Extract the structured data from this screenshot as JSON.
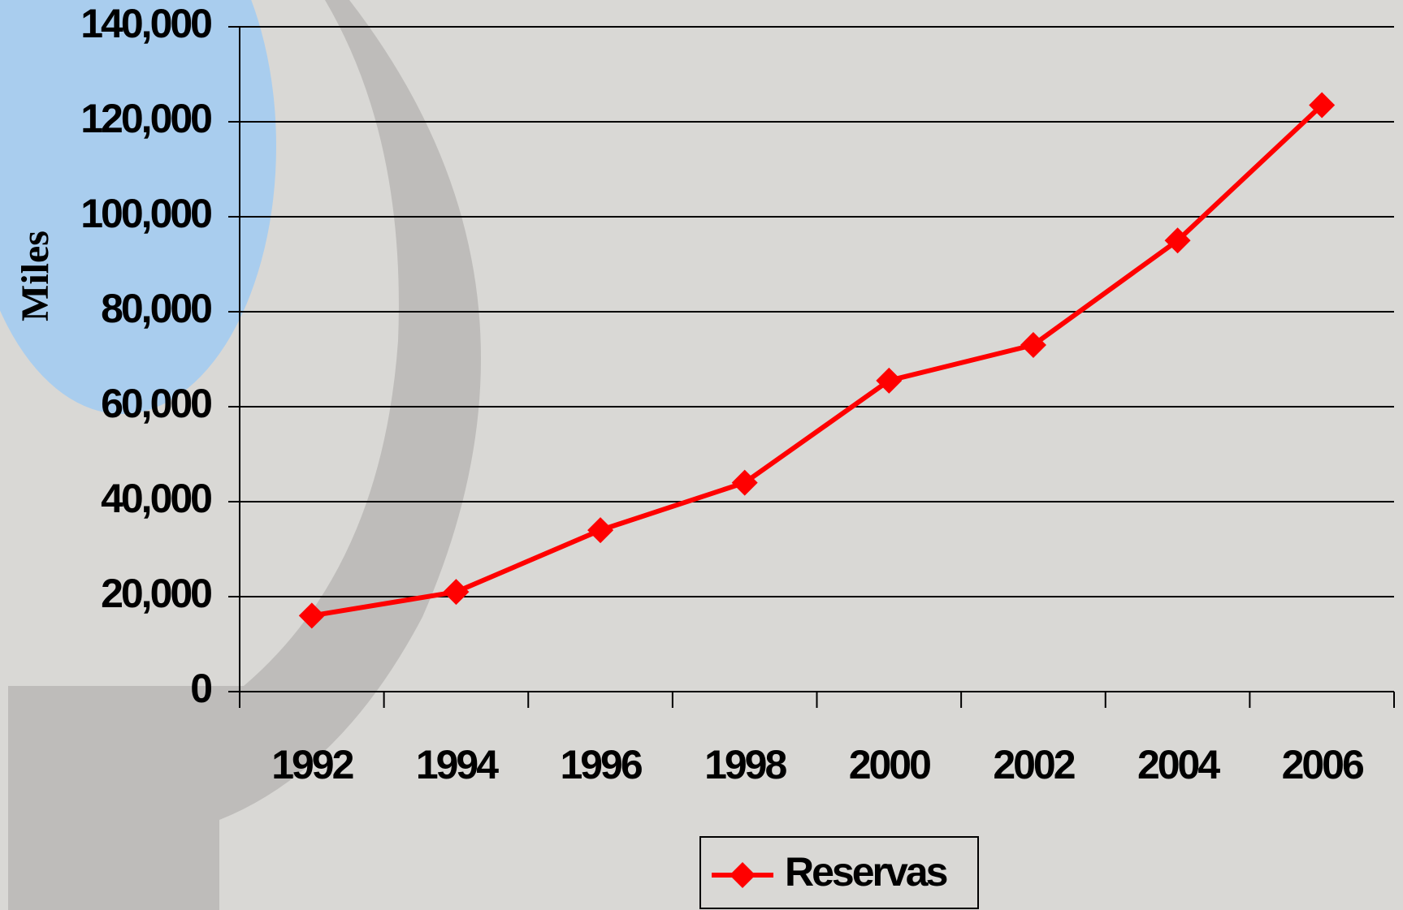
{
  "chart_data": {
    "type": "line",
    "y_label": "Miles",
    "categories": [
      "1992",
      "1994",
      "1996",
      "1998",
      "2000",
      "2002",
      "2004",
      "2006"
    ],
    "series": [
      {
        "name": "Reservas",
        "color": "#ff0000",
        "values": [
          16000,
          21000,
          34000,
          44000,
          65500,
          73000,
          95000,
          123500
        ]
      }
    ],
    "ylim": [
      0,
      140000
    ],
    "yticks": [
      0,
      {
        "value": 20000,
        "label": "20,000"
      },
      {
        "value": 40000,
        "label": "40,000"
      },
      {
        "value": 60000,
        "label": "60,000"
      },
      {
        "value": 80000,
        "label": "80,000"
      },
      {
        "value": 100000,
        "label": "100,000"
      },
      {
        "value": 120000,
        "label": "120,000"
      },
      {
        "value": 140000,
        "label": "140,000"
      }
    ],
    "grid": true,
    "legend": "bottom"
  }
}
